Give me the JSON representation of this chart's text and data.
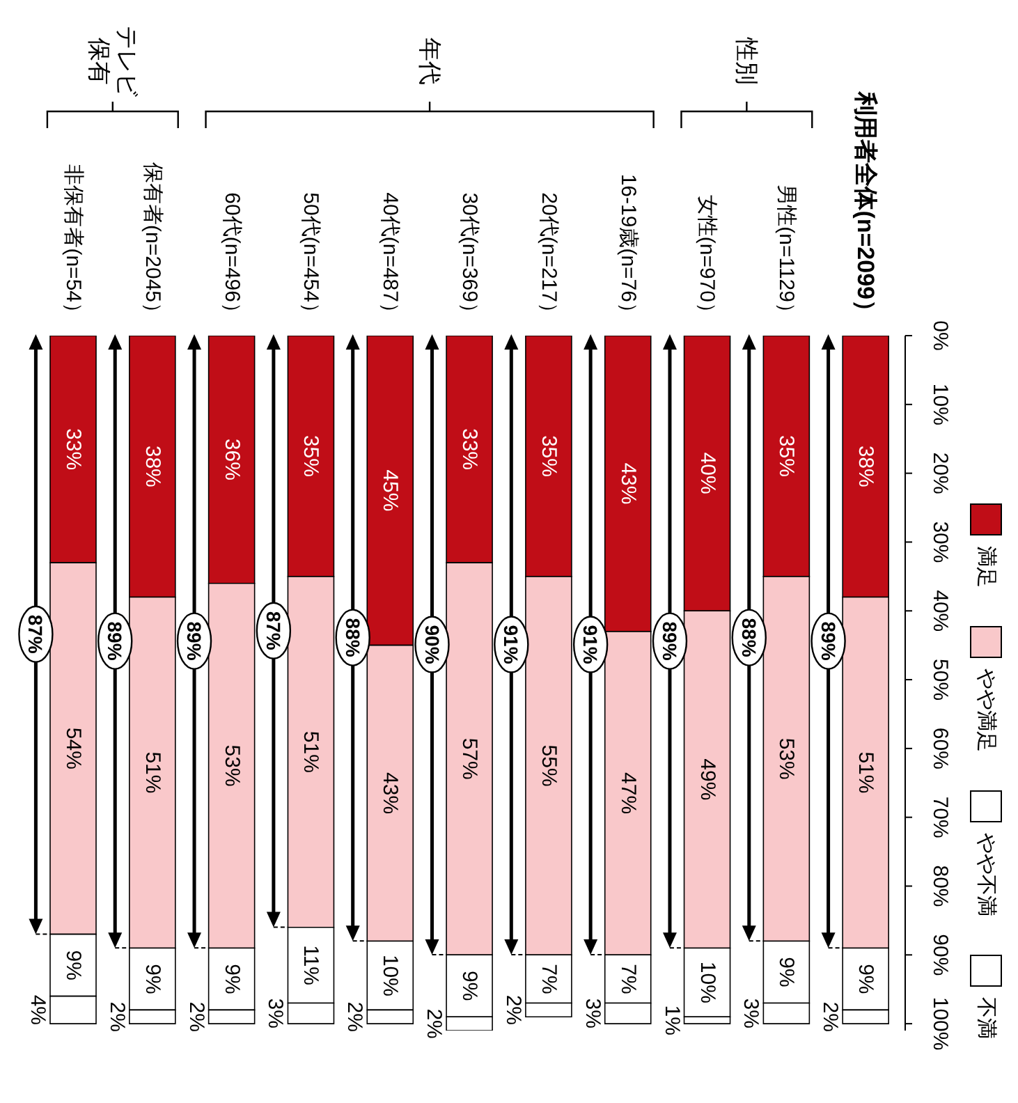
{
  "chart_data": {
    "type": "bar",
    "stacked": true,
    "categories": [
      "非保有者(n=54）",
      "保有者(n=2045）",
      "60代(n=496）",
      "50代(n=454）",
      "40代(n=487）",
      "30代(n=369）",
      "20代(n=217）",
      "16-19歳(n=76）",
      "女性(n=970）",
      "男性(n=1129）",
      "利用者全体(n=2099）"
    ],
    "series": [
      {
        "name": "満足",
        "color": "#c00d17",
        "values": [
          33,
          38,
          36,
          35,
          45,
          33,
          35,
          43,
          40,
          35,
          38
        ],
        "value_labels": [
          "33%",
          "38%",
          "36%",
          "35%",
          "45%",
          "33%",
          "35%",
          "43%",
          "40%",
          "35%",
          "38%"
        ]
      },
      {
        "name": "やや満足",
        "color": "#f9c8ca",
        "values": [
          54,
          51,
          53,
          51,
          43,
          57,
          55,
          47,
          49,
          53,
          51
        ],
        "value_labels": [
          "54%",
          "51%",
          "53%",
          "51%",
          "43%",
          "57%",
          "55%",
          "47%",
          "49%",
          "53%",
          "51%"
        ]
      },
      {
        "name": "やや不満",
        "color": "#ffffff",
        "values": [
          9,
          9,
          9,
          11,
          10,
          9,
          7,
          7,
          10,
          9,
          9
        ],
        "value_labels": [
          "9%",
          "9%",
          "9%",
          "11%",
          "10%",
          "9%",
          "7%",
          "7%",
          "10%",
          "9%",
          "9%"
        ]
      },
      {
        "name": "不満",
        "color": "#ffffff",
        "values": [
          4,
          2,
          2,
          3,
          2,
          2,
          2,
          3,
          1,
          3,
          2
        ],
        "value_labels": [
          "4%",
          "2%",
          "2%",
          "3%",
          "2%",
          "2%",
          "2%",
          "3%",
          "1%",
          "3%",
          "2%"
        ]
      }
    ],
    "ylim": [
      101,
      0
    ],
    "yticks": [
      {
        "value": 0,
        "label": "0%"
      },
      {
        "value": 10,
        "label": "10%"
      },
      {
        "value": 20,
        "label": "20%"
      },
      {
        "value": 30,
        "label": "30%"
      },
      {
        "value": 40,
        "label": "40%"
      },
      {
        "value": 50,
        "label": "50%"
      },
      {
        "value": 60,
        "label": "60%"
      },
      {
        "value": 70,
        "label": "70%"
      },
      {
        "value": 80,
        "label": "80%"
      },
      {
        "value": 90,
        "label": "90%"
      },
      {
        "value": 100,
        "label": "100%"
      }
    ],
    "legend": "right",
    "annotations": [
      "テレビ保有",
      "年代",
      "性別",
      "87%",
      "89%",
      "89%",
      "87%",
      "88%",
      "90%",
      "91%",
      "91%",
      "89%",
      "88%",
      "89%"
    ]
  }
}
